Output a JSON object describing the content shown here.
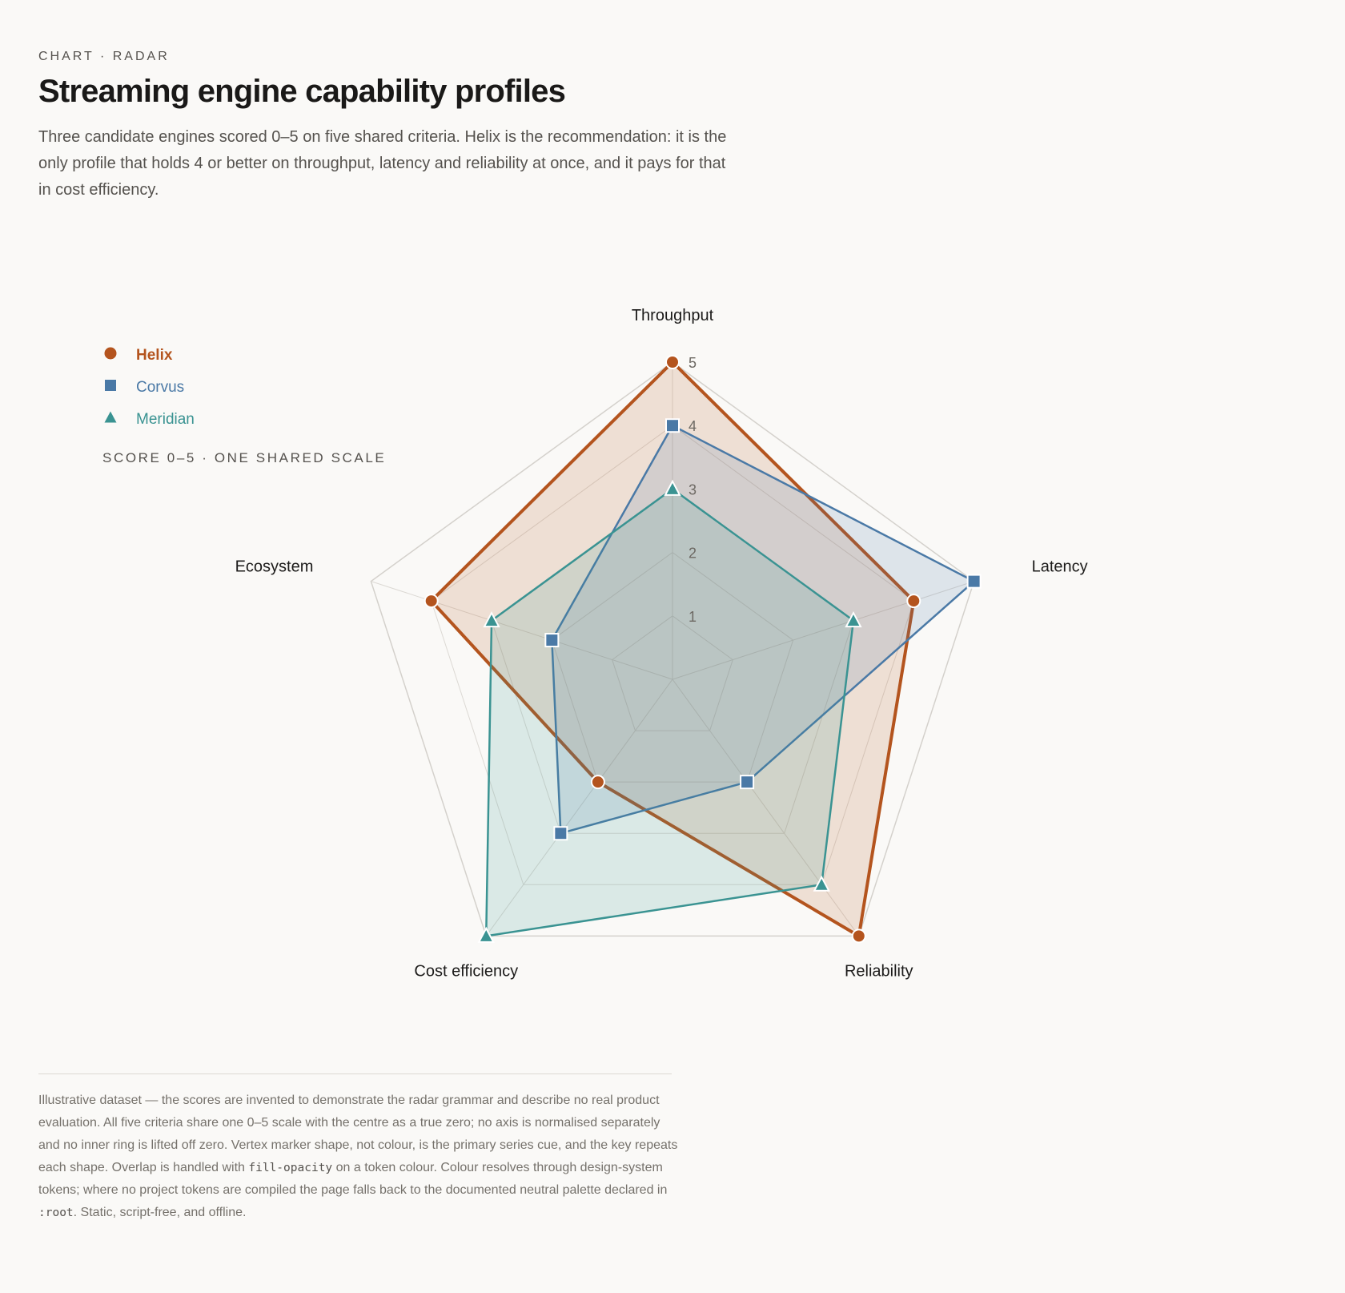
{
  "header": {
    "eyebrow": "CHART · RADAR",
    "title": "Streaming engine capability profiles",
    "lede": "Three candidate engines scored 0–5 on five shared criteria. Helix is the recommendation: it is the only profile that holds 4 or better on throughput, latency and reliability at once, and it pays for that in cost efficiency."
  },
  "legend": {
    "items": [
      {
        "label": "Helix",
        "marker": "circle"
      },
      {
        "label": "Corvus",
        "marker": "square"
      },
      {
        "label": "Meridian",
        "marker": "triangle"
      }
    ],
    "scale_note": "SCORE 0–5 · ONE SHARED SCALE"
  },
  "chart_data": {
    "type": "radar",
    "axes": [
      "Throughput",
      "Latency",
      "Reliability",
      "Cost efficiency",
      "Ecosystem"
    ],
    "scale": [
      0,
      5
    ],
    "ring_labels": [
      "1",
      "2",
      "3",
      "4",
      "5"
    ],
    "grid": true,
    "legend_position": "top-left",
    "series": [
      {
        "name": "Helix",
        "values": [
          5,
          4,
          5,
          2,
          4
        ],
        "color": "#b4541e",
        "marker": "circle"
      },
      {
        "name": "Corvus",
        "values": [
          4,
          5,
          2,
          3,
          2
        ],
        "color": "#4a79a6",
        "marker": "square"
      },
      {
        "name": "Meridian",
        "values": [
          3,
          3,
          4,
          5,
          3
        ],
        "color": "#3a9392",
        "marker": "triangle"
      }
    ]
  },
  "footnote": {
    "part1": "Illustrative dataset — the scores are invented to demonstrate the radar grammar and describe no real product evaluation. All five criteria share one 0–5 scale with the centre as a true zero; no axis is normalised separately and no inner ring is lifted off zero. Vertex marker shape, not colour, is the primary series cue, and the key repeats each shape. Overlap is handled with ",
    "code1": "fill-opacity",
    "part2": " on a token colour. Colour resolves through design-system tokens; where no project tokens are compiled the page falls back to the documented neutral palette declared in ",
    "code2": ":root",
    "part3": ". Static, script-free, and offline."
  }
}
